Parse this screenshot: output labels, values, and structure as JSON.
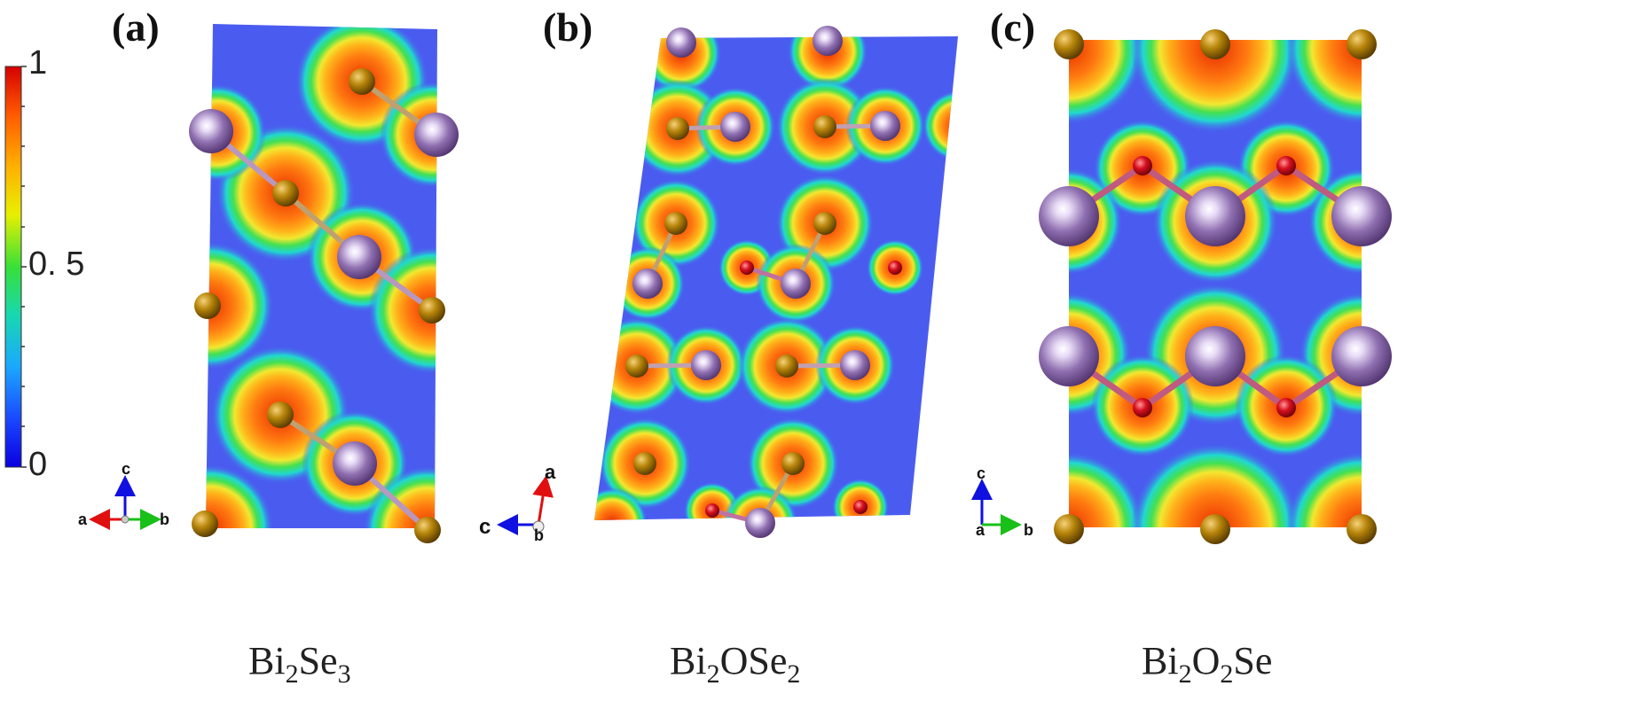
{
  "panels": [
    {
      "label": "(a)",
      "formula": {
        "parts": [
          "Bi",
          "2",
          "Se",
          "3"
        ]
      }
    },
    {
      "label": "(b)",
      "formula": {
        "parts": [
          "Bi",
          "2",
          "OSe",
          "2"
        ]
      }
    },
    {
      "label": "(c)",
      "formula": {
        "parts": [
          "Bi",
          "2",
          "O",
          "2",
          "Se"
        ]
      }
    }
  ],
  "colorbar": {
    "ticks": [
      "1",
      "0. 5",
      "0"
    ],
    "colors": [
      "#d60000",
      "#ff7a00",
      "#ffd800",
      "#9be800",
      "#2ccc2c",
      "#18d2c8",
      "#1aa0ff",
      "#1a3cff",
      "#0a00e0"
    ]
  },
  "axes": {
    "a": {
      "up": "c",
      "left": "a",
      "right": "b"
    },
    "b": {
      "up": "a",
      "left": "c",
      "center": "b"
    },
    "c": {
      "up": "c",
      "left": "a",
      "right": "b"
    }
  },
  "colors": {
    "background_field": "#4a5cf0",
    "se_atom": "#b8860b",
    "bi_atom": "#8f6fb0",
    "o_atom": "#d81020",
    "axis_red": "#e01010",
    "axis_green": "#18c018",
    "axis_blue": "#1010e0"
  }
}
